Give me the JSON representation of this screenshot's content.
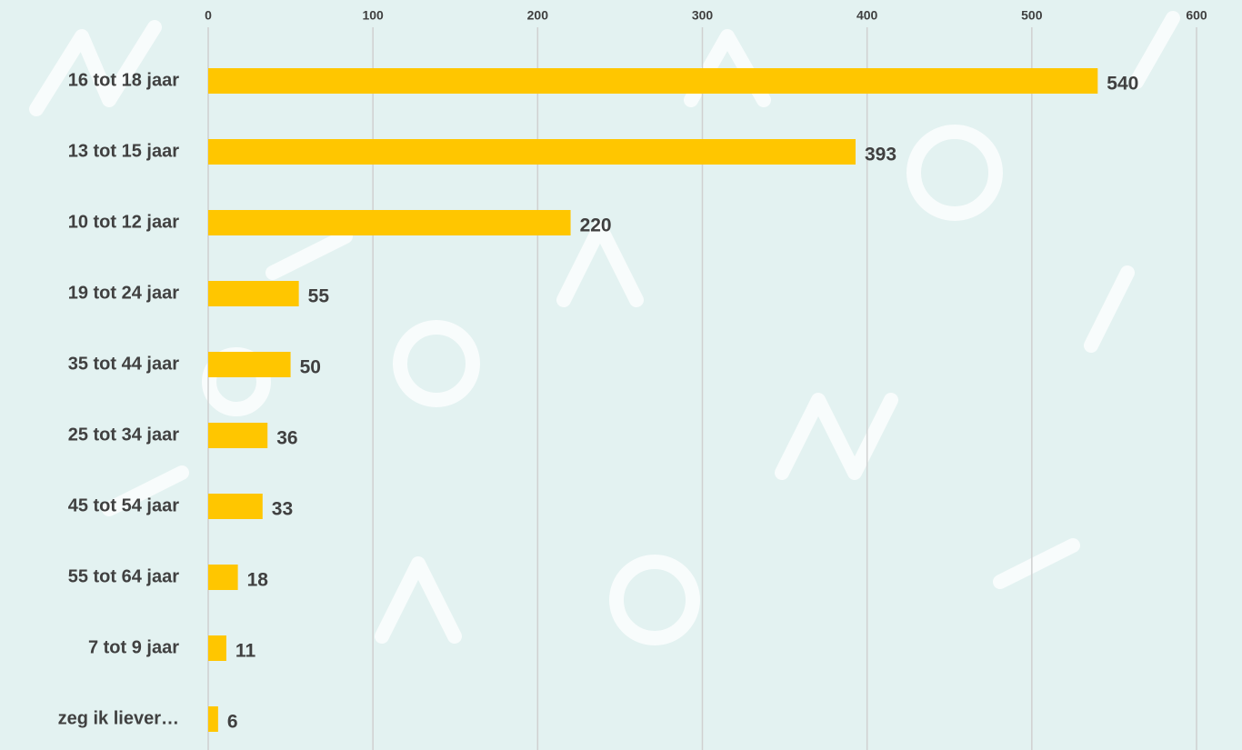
{
  "chart_data": {
    "type": "bar",
    "orientation": "horizontal",
    "categories": [
      "16 tot 18 jaar",
      "13 tot 15 jaar",
      "10 tot 12 jaar",
      "19 tot 24 jaar",
      "35 tot 44 jaar",
      "25 tot 34 jaar",
      "45 tot 54 jaar",
      "55 tot 64 jaar",
      "7 tot 9 jaar",
      "zeg ik liever…"
    ],
    "values": [
      540,
      393,
      220,
      55,
      50,
      36,
      33,
      18,
      11,
      6
    ],
    "color": "#ffc600",
    "xlim": [
      0,
      600
    ],
    "xticks": [
      0,
      100,
      200,
      300,
      400,
      500,
      600
    ],
    "grid": true
  }
}
